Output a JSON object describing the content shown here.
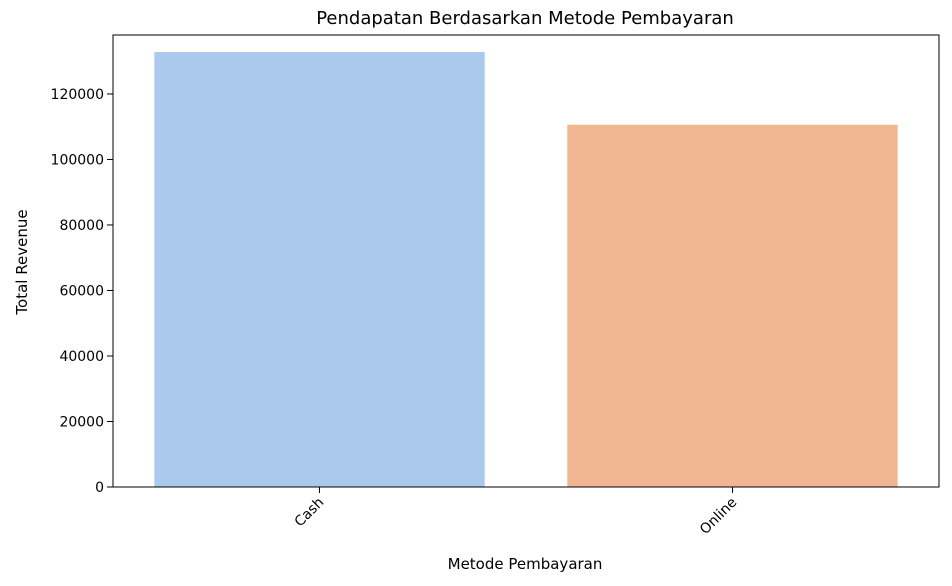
{
  "chart_data": {
    "type": "bar",
    "title": "Pendapatan Berdasarkan Metode Pembayaran",
    "xlabel": "Metode Pembayaran",
    "ylabel": "Total Revenue",
    "categories": [
      "Cash",
      "Online"
    ],
    "values": [
      132800,
      110600
    ],
    "colors": [
      "#abc9ed",
      "#f0b792"
    ],
    "ylim": [
      0,
      138000
    ],
    "yticks": [
      0,
      20000,
      40000,
      60000,
      80000,
      100000,
      120000
    ],
    "ytick_labels": [
      "0",
      "20000",
      "40000",
      "60000",
      "80000",
      "100000",
      "120000"
    ],
    "grid": false,
    "legend": "none"
  }
}
